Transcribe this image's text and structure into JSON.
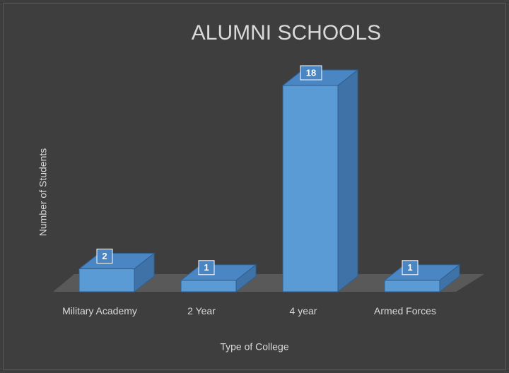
{
  "chart_data": {
    "type": "bar3d",
    "title": "ALUMNI SCHOOLS",
    "x_label": "Type of College",
    "y_label": "Number of Students",
    "categories": [
      "Military Academy",
      "2 Year",
      "4 year",
      "Armed Forces"
    ],
    "values": [
      2,
      1,
      18,
      1
    ],
    "color": "#5b9bd5"
  }
}
